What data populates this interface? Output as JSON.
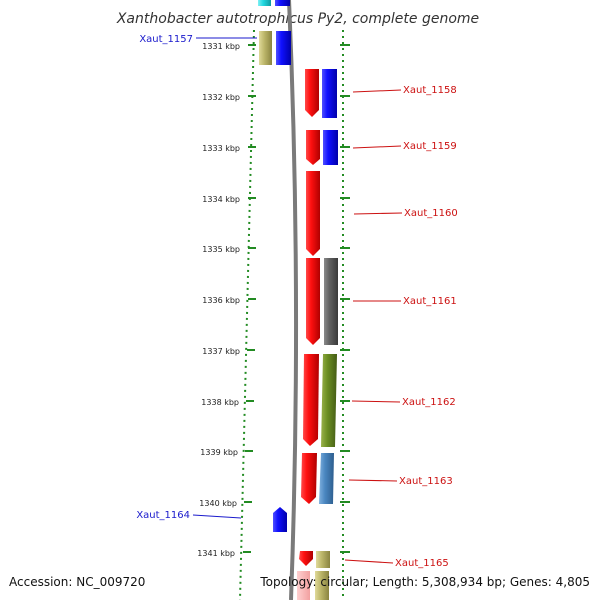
{
  "title": "Xanthobacter autotrophicus Py2, complete genome",
  "footer": {
    "accession": "Accession: NC_009720",
    "topology": "Topology: circular; Length: 5,308,934 bp; Genes: 4,805"
  },
  "ticks": [
    "1331 kbp",
    "1332 kbp",
    "1333 kbp",
    "1334 kbp",
    "1335 kbp",
    "1336 kbp",
    "1337 kbp",
    "1338 kbp",
    "1339 kbp",
    "1340 kbp",
    "1341 kbp"
  ],
  "genes": {
    "left": [
      "Xaut_1157",
      "Xaut_1164"
    ],
    "right": [
      "Xaut_1158",
      "Xaut_1159",
      "Xaut_1160",
      "Xaut_1161",
      "Xaut_1162",
      "Xaut_1163",
      "Xaut_1165"
    ]
  },
  "colors": {
    "ruler": "#228b22",
    "backbone": "#7a7a7a",
    "left_label": "#1a1acc",
    "right_label": "#cc1111",
    "red": "#ff1a1a",
    "blue": "#1a1aff",
    "gray": "#5e5e5e",
    "olive": "#6b8e23",
    "steel": "#4a86c0",
    "khaki": "#bdb76b",
    "cyan": "#22d8e0"
  }
}
